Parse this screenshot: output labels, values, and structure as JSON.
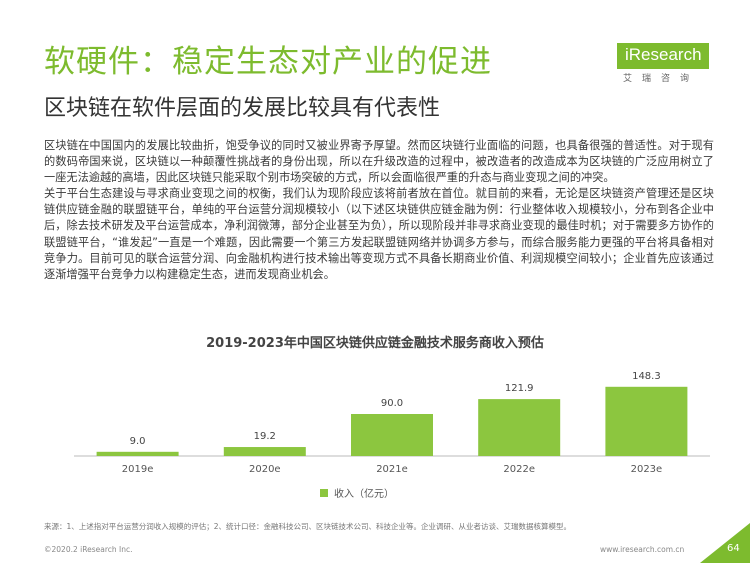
{
  "colors": {
    "accent": "#7dbb2e",
    "bar": "#8cc63f"
  },
  "header": {
    "title": "软硬件：稳定生态对产业的促进",
    "subtitle": "区块链在软件层面的发展比较具有代表性"
  },
  "logo": {
    "name": "iResearch",
    "sub": "艾瑞咨询"
  },
  "body": {
    "paragraphs": [
      "区块链在中国国内的发展比较曲折，饱受争议的同时又被业界寄予厚望。然而区块链行业面临的问题，也具备很强的普适性。对于现有的数码帝国来说，区块链以一种颠覆性挑战者的身份出现，所以在升级改造的过程中，被改造者的改造成本为区块链的广泛应用树立了一座无法逾越的高墙，因此区块链只能采取个别市场突破的方式，所以会面临很严重的升态与商业变现之间的冲突。",
      "关于平台生态建设与寻求商业变现之间的权衡，我们认为现阶段应该将前者放在首位。就目前的来看，无论是区块链资产管理还是区块链供应链金融的联盟链平台，单纯的平台运营分润规模较小（以下述区块链供应链金融为例：行业整体收入规模较小，分布到各企业中后，除去技术研发及平台运营成本，净利润微薄，部分企业甚至为负），所以现阶段并非寻求商业变现的最佳时机；对于需要多方协作的联盟链平台，“谁发起”一直是一个难题，因此需要一个第三方发起联盟链网络并协调多方参与，而综合服务能力更强的平台将具备相对竞争力。目前可见的联合运营分润、向金融机构进行技术输出等变现方式不具备长期商业价值、利润规模空间较小；企业首先应该通过逐渐增强平台竞争力以构建稳定生态，进而发现商业机会。"
    ]
  },
  "chart_data": {
    "type": "bar",
    "title": "2019-2023年中国区块链供应链金融技术服务商收入预估",
    "categories": [
      "2019e",
      "2020e",
      "2021e",
      "2022e",
      "2023e"
    ],
    "series": [
      {
        "name": "收入（亿元）",
        "values": [
          9.0,
          19.2,
          90.0,
          121.9,
          148.3
        ]
      }
    ],
    "value_labels": [
      "9.0",
      "19.2",
      "90.0",
      "121.9",
      "148.3"
    ],
    "ylim": [
      0,
      150
    ],
    "grid": false,
    "legend": "bottom"
  },
  "footer": {
    "source": "来源：1、上述指对平台运营分润收入规模的评估；2、统计口径：金融科技公司、区块链技术公司、科技企业等。企业调研、从业者访谈、艾瑞数据核算模型。",
    "copyright": "©2020.2 iResearch Inc.",
    "website": "www.iresearch.com.cn",
    "page": "64"
  }
}
